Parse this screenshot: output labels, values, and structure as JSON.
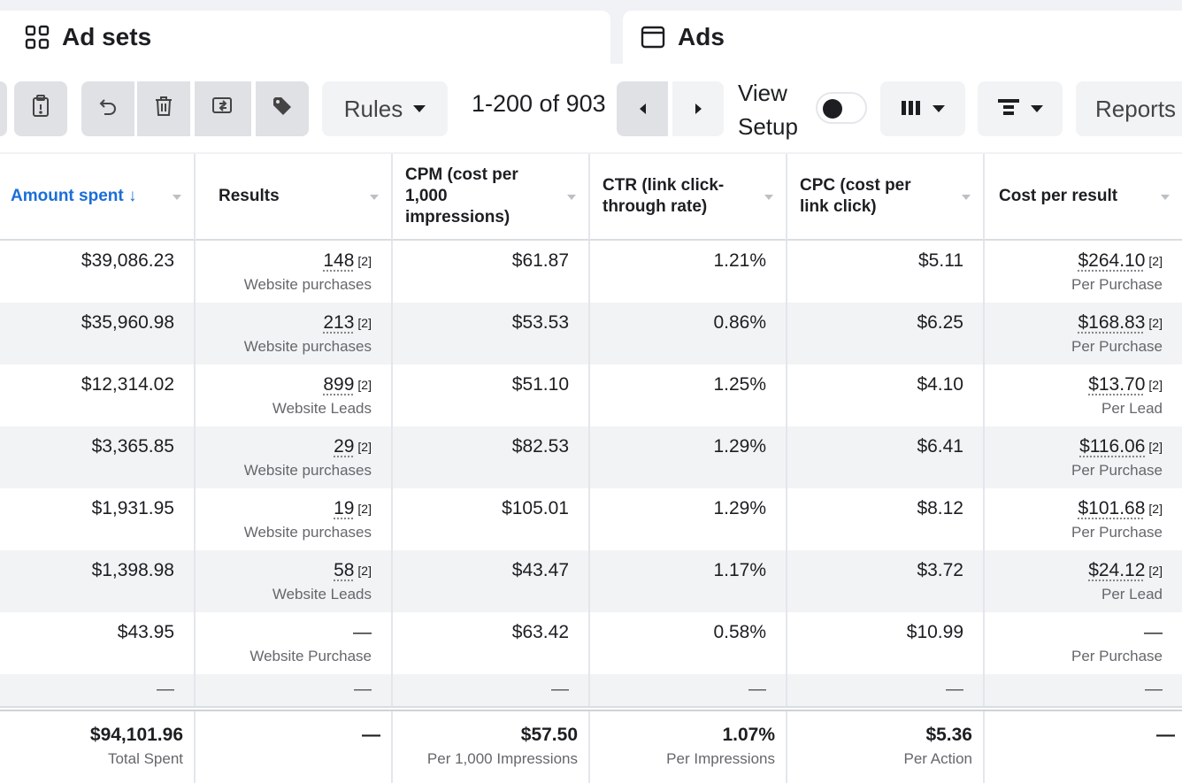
{
  "tabs": {
    "adsets_label": "Ad sets",
    "ads_label": "Ads"
  },
  "toolbar": {
    "rules_label": "Rules",
    "pagination": "1-200 of 903",
    "view_setup": [
      "View",
      "Setup"
    ],
    "view_setup_on": false,
    "reports_label": "Reports"
  },
  "table": {
    "headers": [
      "Amount spent ↓",
      "Results",
      "CPM (cost per 1,000 impressions)",
      "CTR (link click-through rate)",
      "CPC (cost per link click)",
      "Cost per result"
    ],
    "footnote": "[2]",
    "rows": [
      {
        "amount": "$39,086.23",
        "results": "148",
        "results_sub": "Website purchases",
        "cpm": "$61.87",
        "ctr": "1.21%",
        "cpc": "$5.11",
        "cpr": "$264.10",
        "cpr_sub": "Per Purchase"
      },
      {
        "amount": "$35,960.98",
        "results": "213",
        "results_sub": "Website purchases",
        "cpm": "$53.53",
        "ctr": "0.86%",
        "cpc": "$6.25",
        "cpr": "$168.83",
        "cpr_sub": "Per Purchase"
      },
      {
        "amount": "$12,314.02",
        "results": "899",
        "results_sub": "Website Leads",
        "cpm": "$51.10",
        "ctr": "1.25%",
        "cpc": "$4.10",
        "cpr": "$13.70",
        "cpr_sub": "Per Lead"
      },
      {
        "amount": "$3,365.85",
        "results": "29",
        "results_sub": "Website purchases",
        "cpm": "$82.53",
        "ctr": "1.29%",
        "cpc": "$6.41",
        "cpr": "$116.06",
        "cpr_sub": "Per Purchase"
      },
      {
        "amount": "$1,931.95",
        "results": "19",
        "results_sub": "Website purchases",
        "cpm": "$105.01",
        "ctr": "1.29%",
        "cpc": "$8.12",
        "cpr": "$101.68",
        "cpr_sub": "Per Purchase"
      },
      {
        "amount": "$1,398.98",
        "results": "58",
        "results_sub": "Website Leads",
        "cpm": "$43.47",
        "ctr": "1.17%",
        "cpc": "$3.72",
        "cpr": "$24.12",
        "cpr_sub": "Per Lead"
      },
      {
        "amount": "$43.95",
        "results": "—",
        "results_sub": "Website Purchase",
        "cpm": "$63.42",
        "ctr": "0.58%",
        "cpc": "$10.99",
        "cpr": "—",
        "cpr_sub": "Per Purchase"
      }
    ],
    "empty_dash": "—",
    "totals": {
      "amount": "$94,101.96",
      "amount_sub": "Total Spent",
      "results": "—",
      "cpm": "$57.50",
      "cpm_sub": "Per 1,000 Impressions",
      "ctr": "1.07%",
      "ctr_sub": "Per Impressions",
      "cpc": "$5.36",
      "cpc_sub": "Per Action",
      "cpr": "—"
    }
  }
}
